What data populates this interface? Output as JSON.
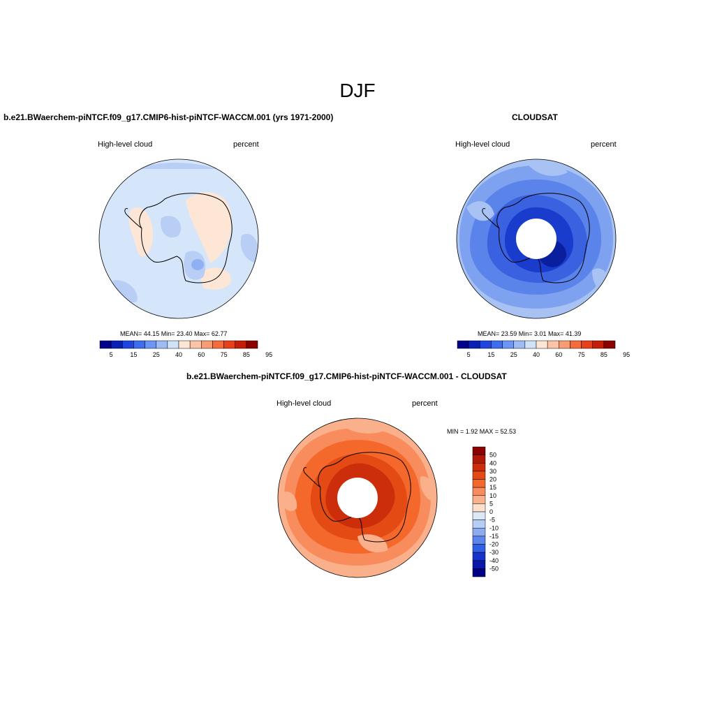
{
  "figure": {
    "title": "DJF",
    "panels": [
      {
        "title": "b.e21.BWaerchem-piNTCF.f09_g17.CMIP6-hist-piNTCF-WACCM.001 (yrs 1971-2000)",
        "variable": "High-level cloud",
        "units": "percent",
        "stats_text": "MEAN=  44.15  Min=  23.40  Max=  62.77",
        "colorbar": {
          "colors": [
            "#00008b",
            "#0a1fb4",
            "#1f45e0",
            "#3d6ef0",
            "#6a96f5",
            "#9dbcf5",
            "#cfe2f6",
            "#fde6d6",
            "#fbc4a8",
            "#f89c74",
            "#f46b3e",
            "#e8401a",
            "#c51d07",
            "#8b0000"
          ],
          "labels": [
            "5",
            "15",
            "25",
            "40",
            "60",
            "75",
            "85",
            "95"
          ]
        }
      },
      {
        "title": "CLOUDSAT",
        "variable": "High-level cloud",
        "units": "percent",
        "stats_text": "MEAN=  23.59  Min=   3.01  Max=  41.39",
        "colorbar": {
          "colors": [
            "#00008b",
            "#0a1fb4",
            "#1f45e0",
            "#3d6ef0",
            "#6a96f5",
            "#9dbcf5",
            "#cfe2f6",
            "#fde6d6",
            "#fbc4a8",
            "#f89c74",
            "#f46b3e",
            "#e8401a",
            "#c51d07",
            "#8b0000"
          ],
          "labels": [
            "5",
            "15",
            "25",
            "40",
            "60",
            "75",
            "85",
            "95"
          ]
        }
      },
      {
        "title": "b.e21.BWaerchem-piNTCF.f09_g17.CMIP6-hist-piNTCF-WACCM.001 - CLOUDSAT",
        "variable": "High-level cloud",
        "units": "percent",
        "stats_text": "MIN =   1.92 MAX =  52.53",
        "colorbar": {
          "colors": [
            "#8b0000",
            "#b01808",
            "#cc2e0c",
            "#e44a14",
            "#f4682c",
            "#f88c5c",
            "#fbb08c",
            "#fde0cc",
            "#dce8f8",
            "#b4cef6",
            "#8cacf2",
            "#5c86ec",
            "#3060e4",
            "#1434cc",
            "#0818a8",
            "#000084"
          ],
          "labels": [
            "50",
            "40",
            "30",
            "20",
            "15",
            "10",
            "5",
            "0",
            "-5",
            "-10",
            "-15",
            "-20",
            "-30",
            "-40",
            "-50"
          ]
        }
      }
    ]
  }
}
